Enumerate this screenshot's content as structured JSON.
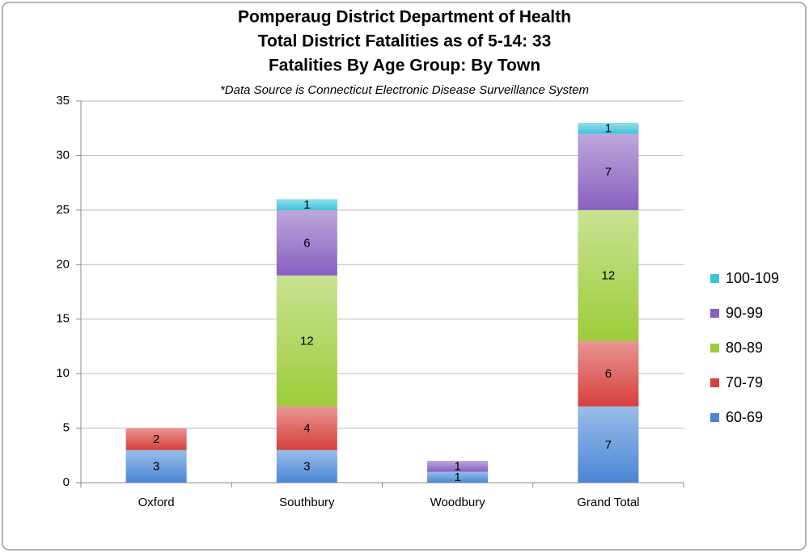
{
  "chart_data": {
    "type": "stacked_bar",
    "title": [
      "Pomperaug District Department of Health",
      "Total District Fatalities as of 5-14: 33",
      "Fatalities By Age Group: By Town"
    ],
    "subtitle": "*Data Source is Connecticut Electronic Disease Surveillance System",
    "categories": [
      "Oxford",
      "Southbury",
      "Woodbury",
      "Grand Total"
    ],
    "series": [
      {
        "name": "60-69",
        "color": "#4a86d6",
        "values": [
          3,
          3,
          1,
          7
        ]
      },
      {
        "name": "70-79",
        "color": "#d6403c",
        "values": [
          2,
          4,
          null,
          6
        ]
      },
      {
        "name": "80-89",
        "color": "#9dcc3a",
        "values": [
          null,
          12,
          null,
          12
        ]
      },
      {
        "name": "90-99",
        "color": "#8860bf",
        "values": [
          null,
          6,
          1,
          7
        ]
      },
      {
        "name": "100-109",
        "color": "#3cc3dc",
        "values": [
          null,
          1,
          null,
          1
        ]
      }
    ],
    "ylim": [
      0,
      35
    ],
    "yticks": [
      0,
      5,
      10,
      15,
      20,
      25,
      30,
      35
    ],
    "grid": true,
    "legend": "right"
  }
}
